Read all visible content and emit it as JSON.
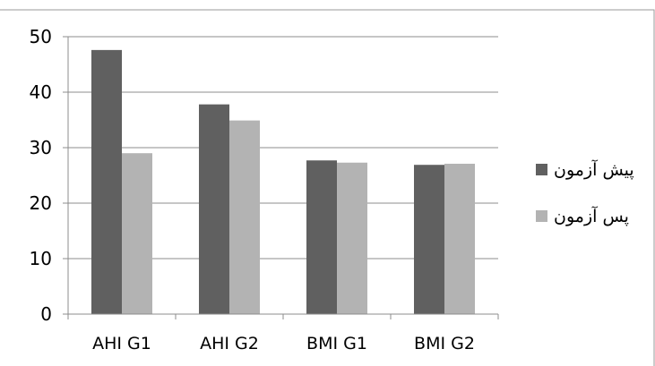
{
  "chart_data": {
    "type": "bar",
    "categories": [
      "AHI G1",
      "AHI G2",
      "BMI G1",
      "BMI G2"
    ],
    "series": [
      {
        "name": "پیش آزمون",
        "values": [
          47.6,
          37.8,
          27.7,
          26.9
        ],
        "color": "#606060"
      },
      {
        "name": "پس آزمون",
        "values": [
          29.0,
          34.9,
          27.3,
          27.1
        ],
        "color": "#b3b3b3"
      }
    ],
    "yticks": [
      0,
      10,
      20,
      30,
      40,
      50
    ],
    "ylim": [
      0,
      50
    ],
    "grid": true,
    "legend_position": "right"
  }
}
